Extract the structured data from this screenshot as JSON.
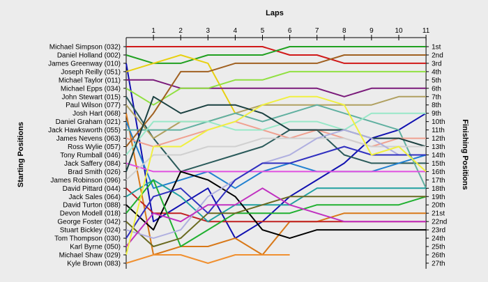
{
  "chart_data": {
    "type": "line",
    "title": "Laps",
    "ylabel_left": "Starting Positions",
    "ylabel_right": "Finishing Positions",
    "laps": [
      "1",
      "2",
      "3",
      "4",
      "5",
      "6",
      "7",
      "8",
      "9",
      "10",
      "11"
    ],
    "finishing_labels": [
      "1st",
      "2nd",
      "3rd",
      "4th",
      "5th",
      "6th",
      "7th",
      "8th",
      "9th",
      "10th",
      "11th",
      "12th",
      "13th",
      "14th",
      "15th",
      "16th",
      "17th",
      "18th",
      "19th",
      "20th",
      "21st",
      "22nd",
      "23rd",
      "24th",
      "25th",
      "26th",
      "27th"
    ],
    "grid": false,
    "series": [
      {
        "name": "Michael Simpson (032)",
        "color": "#d01818",
        "positions": [
          1,
          1,
          1,
          1,
          1,
          1,
          2,
          2,
          3,
          3,
          3,
          3
        ]
      },
      {
        "name": "Daniel Holland (002)",
        "color": "#20a020",
        "positions": [
          2,
          3,
          3,
          2,
          2,
          2,
          1,
          1,
          1,
          1,
          1,
          1
        ]
      },
      {
        "name": "James Greenway (010)",
        "color": "#1010b0",
        "positions": [
          3,
          22,
          20,
          18,
          24,
          22,
          19,
          17,
          15,
          12,
          11,
          9
        ]
      },
      {
        "name": "Joseph Reilly (051)",
        "color": "#e8d010",
        "positions": [
          4,
          3,
          2,
          3,
          9,
          null,
          null,
          null,
          null,
          null,
          null,
          null
        ]
      },
      {
        "name": "Michael Taylor (011)",
        "color": "#7a1a7a",
        "positions": [
          5,
          5,
          6,
          6,
          6,
          6,
          6,
          6,
          7,
          6,
          6,
          6
        ]
      },
      {
        "name": "Michael Epps (034)",
        "color": "#90e040",
        "positions": [
          6,
          8,
          6,
          6,
          5,
          5,
          4,
          4,
          4,
          4,
          4,
          4
        ]
      },
      {
        "name": "John Stewart (015)",
        "color": "#2a5a5a",
        "positions": [
          7,
          12,
          16,
          15,
          14,
          13,
          11,
          11,
          14,
          15,
          15,
          15
        ]
      },
      {
        "name": "Paul Wilson (077)",
        "color": "#b0a060",
        "positions": [
          8,
          12,
          10,
          10,
          9,
          8,
          8,
          8,
          8,
          8,
          7,
          7
        ]
      },
      {
        "name": "Josh Hart (068)",
        "color": "#d87818",
        "positions": [
          9,
          26,
          25,
          25,
          24,
          26,
          22,
          22,
          21,
          21,
          21,
          21
        ]
      },
      {
        "name": "Daniel Graham (021)",
        "color": "#2080d0",
        "positions": [
          10,
          18,
          17,
          16,
          18,
          16,
          15,
          16,
          16,
          16,
          15,
          14
        ]
      },
      {
        "name": "Jack Hawksworth (055)",
        "color": "#60b0a0",
        "positions": [
          11,
          11,
          11,
          10,
          9,
          10,
          9,
          8,
          9,
          10,
          11,
          18
        ]
      },
      {
        "name": "James Nevens (063)",
        "color": "#f0a090",
        "positions": [
          12,
          13,
          12,
          11,
          10,
          11,
          12,
          11,
          12,
          13,
          12,
          12
        ]
      },
      {
        "name": "Ross Wylie (057)",
        "color": "#a06020",
        "positions": [
          13,
          9,
          4,
          4,
          3,
          3,
          3,
          3,
          2,
          2,
          2,
          2
        ]
      },
      {
        "name": "Tony Rumball (046)",
        "color": "#98e8c8",
        "positions": [
          14,
          10,
          10,
          10,
          11,
          11,
          10,
          10,
          11,
          9,
          9,
          9
        ]
      },
      {
        "name": "Jack Saffery (084)",
        "color": "#e050e0",
        "positions": [
          15,
          16,
          16,
          16,
          16,
          16,
          16,
          16,
          16,
          16,
          16,
          16
        ]
      },
      {
        "name": "Brad Smith (026)",
        "color": "#1a4040",
        "positions": [
          16,
          7,
          9,
          8,
          8,
          9,
          11,
          11,
          11,
          12,
          12,
          13
        ]
      },
      {
        "name": "James Robinson (096)",
        "color": "#d0d0d0",
        "positions": [
          17,
          14,
          14,
          13,
          13,
          12,
          12,
          12,
          12,
          13,
          13,
          13
        ]
      },
      {
        "name": "David Pittard (044)",
        "color": "#c02020",
        "positions": [
          18,
          21,
          21,
          22,
          22,
          22,
          22,
          22,
          22,
          22,
          22,
          22
        ]
      },
      {
        "name": "Jack Sales (064)",
        "color": "#20a0a0",
        "positions": [
          19,
          17,
          19,
          22,
          20,
          20,
          20,
          18,
          18,
          18,
          18,
          18
        ]
      },
      {
        "name": "David Turton (088)",
        "color": "#000000",
        "positions": [
          20,
          23,
          16,
          17,
          19,
          23,
          24,
          23,
          23,
          23,
          23,
          23
        ]
      },
      {
        "name": "Devon Modell (018)",
        "color": "#20b030",
        "positions": [
          21,
          17,
          25,
          23,
          21,
          21,
          21,
          20,
          20,
          20,
          20,
          19
        ]
      },
      {
        "name": "George Foster (042)",
        "color": "#6a6a20",
        "positions": [
          22,
          25,
          24,
          21,
          21,
          20,
          19,
          19,
          19,
          19,
          19,
          19
        ]
      },
      {
        "name": "Stuart Bickley (024)",
        "color": "#b0b0e0",
        "positions": [
          23,
          24,
          23,
          19,
          17,
          15,
          14,
          12,
          11,
          12,
          14,
          14
        ]
      },
      {
        "name": "Tom Thompson (030)",
        "color": "#3030c0",
        "positions": [
          24,
          19,
          18,
          21,
          17,
          15,
          15,
          14,
          13,
          14,
          14,
          14
        ]
      },
      {
        "name": "Karl Byrne (050)",
        "color": "#c030c0",
        "positions": [
          25,
          21,
          22,
          20,
          20,
          18,
          20,
          21,
          22,
          22,
          22,
          22
        ]
      },
      {
        "name": "Michael Shaw (029)",
        "color": "#f0f040",
        "positions": [
          26,
          13,
          13,
          11,
          10,
          8,
          7,
          7,
          8,
          14,
          13,
          16
        ]
      },
      {
        "name": "Kyle Brown (083)",
        "color": "#f09030",
        "positions": [
          27,
          26,
          26,
          27,
          26,
          26,
          26,
          null,
          null,
          null,
          null,
          null
        ]
      }
    ]
  }
}
